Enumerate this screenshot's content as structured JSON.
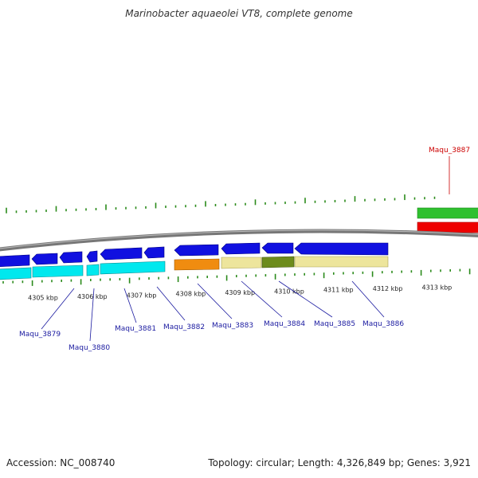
{
  "title": "Marinobacter aquaeolei VT8, complete genome",
  "footer": {
    "accession": "Accession: NC_008740",
    "summary": "Topology: circular; Length: 4,326,849 bp; Genes: 3,921"
  },
  "colors": {
    "backbone": "#808080",
    "tick": "#2a8a1a",
    "cds_forward": "#1010e0",
    "cds_reverse": "#00e8ee",
    "orange": "#f08c10",
    "khaki": "#ede59c",
    "olive": "#6d8c1c",
    "green": "#30c030",
    "red": "#ee0000",
    "label_blue": "#1a1aa0",
    "label_red": "#cc0000"
  },
  "scale": {
    "start_kbp": 4304.5,
    "end_kbp": 4314.2
  },
  "kbp_ticks": [
    {
      "label": "4305 kbp",
      "kbp": 4305
    },
    {
      "label": "4306 kbp",
      "kbp": 4306
    },
    {
      "label": "4307 kbp",
      "kbp": 4307
    },
    {
      "label": "4308 kbp",
      "kbp": 4308
    },
    {
      "label": "4309 kbp",
      "kbp": 4309
    },
    {
      "label": "4310 kbp",
      "kbp": 4310
    },
    {
      "label": "4311 kbp",
      "kbp": 4311
    },
    {
      "label": "4312 kbp",
      "kbp": 4312
    },
    {
      "label": "4313 kbp",
      "kbp": 4313
    }
  ],
  "gene_labels": [
    {
      "name": "Maqu_3879",
      "color": "#1a1aa0"
    },
    {
      "name": "Maqu_3880",
      "color": "#1a1aa0"
    },
    {
      "name": "Maqu_3881",
      "color": "#1a1aa0"
    },
    {
      "name": "Maqu_3882",
      "color": "#1a1aa0"
    },
    {
      "name": "Maqu_3883",
      "color": "#1a1aa0"
    },
    {
      "name": "Maqu_3884",
      "color": "#1a1aa0"
    },
    {
      "name": "Maqu_3885",
      "color": "#1a1aa0"
    },
    {
      "name": "Maqu_3886",
      "color": "#1a1aa0"
    },
    {
      "name": "Maqu_3887",
      "color": "#cc0000"
    }
  ]
}
